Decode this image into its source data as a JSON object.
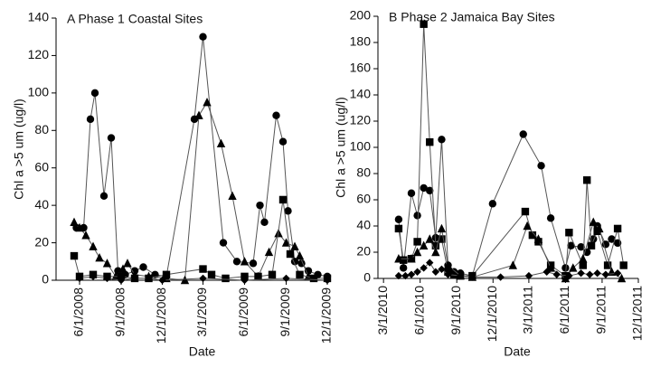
{
  "chart_data": [
    {
      "type": "scatter",
      "title": "A Phase 1 Coastal Sites",
      "x_label": "Date",
      "y_label": "Chl a >5 um (ug/l)",
      "xlim": [
        "4/10/2008",
        "12/7/2009"
      ],
      "xticks": [
        "6/1/2008",
        "9/1/2008",
        "12/1/2008",
        "3/1/2009",
        "6/1/2009",
        "9/1/2009",
        "12/1/2009"
      ],
      "ylim": [
        0,
        140
      ],
      "yticks": [
        0,
        20,
        40,
        60,
        80,
        100,
        120,
        140
      ],
      "connect": true,
      "line_color": "#555555",
      "series": [
        {
          "marker": "circle",
          "color": "#000000",
          "x": [
            "5/25/2008",
            "6/10/2008",
            "6/25/2008",
            "7/5/2008",
            "7/25/2008",
            "8/10/2008",
            "8/25/2008",
            "9/10/2008",
            "10/1/2008",
            "10/20/2008",
            "11/15/2008",
            "12/10/2008",
            "2/10/2009",
            "3/1/2009",
            "4/15/2009",
            "5/15/2009",
            "6/20/2009",
            "7/5/2009",
            "7/15/2009",
            "8/10/2009",
            "8/25/2009",
            "9/5/2009",
            "9/20/2009",
            "10/5/2009",
            "10/20/2009",
            "11/10/2009",
            "12/1/2009"
          ],
          "values": [
            28,
            28,
            86,
            100,
            45,
            76,
            5,
            3,
            5,
            7,
            3,
            2,
            86,
            130,
            20,
            10,
            9,
            40,
            31,
            88,
            74,
            37,
            10,
            9,
            5,
            3,
            2
          ]
        },
        {
          "marker": "triangle",
          "color": "#000000",
          "x": [
            "5/20/2008",
            "6/1/2008",
            "6/15/2008",
            "7/1/2008",
            "7/15/2008",
            "8/1/2008",
            "8/20/2008",
            "9/5/2008",
            "9/15/2008",
            "10/1/2008",
            "11/1/2008",
            "12/10/2008",
            "1/20/2009",
            "2/20/2009",
            "3/10/2009",
            "4/10/2009",
            "5/5/2009",
            "6/1/2009",
            "7/1/2009",
            "7/25/2009",
            "8/15/2009",
            "9/1/2009",
            "9/20/2009",
            "10/1/2009",
            "10/20/2009"
          ],
          "values": [
            31,
            28,
            24,
            18,
            12,
            9,
            2,
            6,
            9,
            3,
            2,
            1,
            0,
            88,
            95,
            73,
            45,
            10,
            2,
            15,
            25,
            20,
            18,
            13,
            2
          ]
        },
        {
          "marker": "square",
          "color": "#000000",
          "x": [
            "5/20/2008",
            "6/1/2008",
            "7/1/2008",
            "8/1/2008",
            "9/1/2008",
            "10/1/2008",
            "11/1/2008",
            "12/10/2008",
            "3/1/2009",
            "3/20/2009",
            "4/20/2009",
            "6/1/2009",
            "7/1/2009",
            "8/1/2009",
            "8/25/2009",
            "9/10/2009",
            "10/1/2009",
            "11/1/2009",
            "12/1/2009"
          ],
          "values": [
            13,
            2,
            3,
            2,
            2,
            1,
            1,
            3,
            6,
            3,
            1,
            2,
            2,
            3,
            43,
            14,
            3,
            1,
            1
          ]
        },
        {
          "marker": "diamond",
          "color": "#000000",
          "x": [
            "6/1/2008",
            "7/1/2008",
            "8/1/2008",
            "9/1/2008",
            "10/1/2008",
            "11/1/2008",
            "12/1/2008",
            "3/1/2009",
            "6/1/2009",
            "9/1/2009",
            "12/1/2009"
          ],
          "values": [
            1,
            2,
            1,
            0,
            1,
            1,
            0,
            1,
            0,
            1,
            0
          ]
        }
      ]
    },
    {
      "type": "scatter",
      "title": "B Phase 2 Jamaica Bay Sites",
      "x_label": "Date",
      "y_label": "Chl a >5 um (ug/l)",
      "xlim": [
        "2/15/2010",
        "12/1/2011"
      ],
      "xticks": [
        "3/1/2010",
        "6/1/2010",
        "9/1/2010",
        "12/1/2010",
        "3/1/2011",
        "6/1/2011",
        "9/1/2011",
        "12/1/2011"
      ],
      "ylim": [
        0,
        200
      ],
      "yticks": [
        0,
        20,
        40,
        60,
        80,
        100,
        120,
        140,
        160,
        180,
        200
      ],
      "connect": true,
      "line_color": "#555555",
      "series": [
        {
          "marker": "circle",
          "color": "#000000",
          "x": [
            "4/8/2010",
            "4/20/2010",
            "5/10/2010",
            "5/25/2010",
            "6/10/2010",
            "6/25/2010",
            "7/10/2010",
            "7/25/2010",
            "8/10/2010",
            "8/25/2010",
            "9/10/2010",
            "10/10/2010",
            "11/30/2010",
            "2/15/2011",
            "4/1/2011",
            "4/25/2011",
            "6/1/2011",
            "6/15/2011",
            "7/10/2011",
            "7/25/2011",
            "8/10/2011",
            "8/20/2011",
            "9/10/2011",
            "9/25/2011",
            "10/10/2011"
          ],
          "values": [
            45,
            8,
            65,
            48,
            69,
            67,
            31,
            106,
            10,
            5,
            4,
            2,
            57,
            110,
            86,
            46,
            8,
            25,
            24,
            20,
            30,
            40,
            26,
            30,
            27
          ]
        },
        {
          "marker": "square",
          "color": "#000000",
          "x": [
            "4/8/2010",
            "4/20/2010",
            "5/10/2010",
            "5/25/2010",
            "6/10/2010",
            "6/25/2010",
            "7/10/2010",
            "7/25/2010",
            "8/10/2010",
            "8/25/2010",
            "9/10/2010",
            "10/10/2010",
            "2/20/2011",
            "3/10/2011",
            "3/25/2011",
            "4/25/2011",
            "6/1/2011",
            "6/10/2011",
            "7/15/2011",
            "7/25/2011",
            "8/5/2011",
            "8/20/2011",
            "9/15/2011",
            "10/10/2011",
            "10/25/2011"
          ],
          "values": [
            38,
            14,
            15,
            28,
            194,
            104,
            25,
            30,
            5,
            3,
            2,
            2,
            51,
            33,
            28,
            10,
            2,
            35,
            10,
            75,
            25,
            36,
            10,
            38,
            10
          ]
        },
        {
          "marker": "triangle",
          "color": "#000000",
          "x": [
            "4/8/2010",
            "5/10/2010",
            "5/25/2010",
            "6/10/2010",
            "6/25/2010",
            "7/10/2010",
            "7/25/2010",
            "8/10/2010",
            "9/10/2010",
            "10/10/2010",
            "1/20/2011",
            "2/25/2011",
            "3/25/2011",
            "4/25/2011",
            "6/1/2011",
            "6/20/2011",
            "7/15/2011",
            "8/10/2011",
            "8/25/2011",
            "9/25/2011",
            "10/20/2011"
          ],
          "values": [
            15,
            15,
            20,
            25,
            30,
            20,
            38,
            10,
            2,
            1,
            10,
            40,
            30,
            8,
            0,
            8,
            15,
            43,
            38,
            5,
            0
          ]
        },
        {
          "marker": "diamond",
          "color": "#000000",
          "x": [
            "4/8/2010",
            "4/25/2010",
            "5/10/2010",
            "5/25/2010",
            "6/10/2010",
            "6/25/2010",
            "7/10/2010",
            "7/25/2010",
            "8/10/2010",
            "9/10/2010",
            "10/10/2010",
            "12/20/2010",
            "3/1/2011",
            "4/15/2011",
            "5/10/2011",
            "6/10/2011",
            "7/10/2011",
            "8/1/2011",
            "8/20/2011",
            "9/10/2011",
            "10/10/2011"
          ],
          "values": [
            2,
            2,
            3,
            5,
            8,
            12,
            5,
            7,
            3,
            2,
            1,
            1,
            2,
            5,
            3,
            2,
            4,
            3,
            4,
            3,
            4
          ]
        }
      ]
    }
  ]
}
